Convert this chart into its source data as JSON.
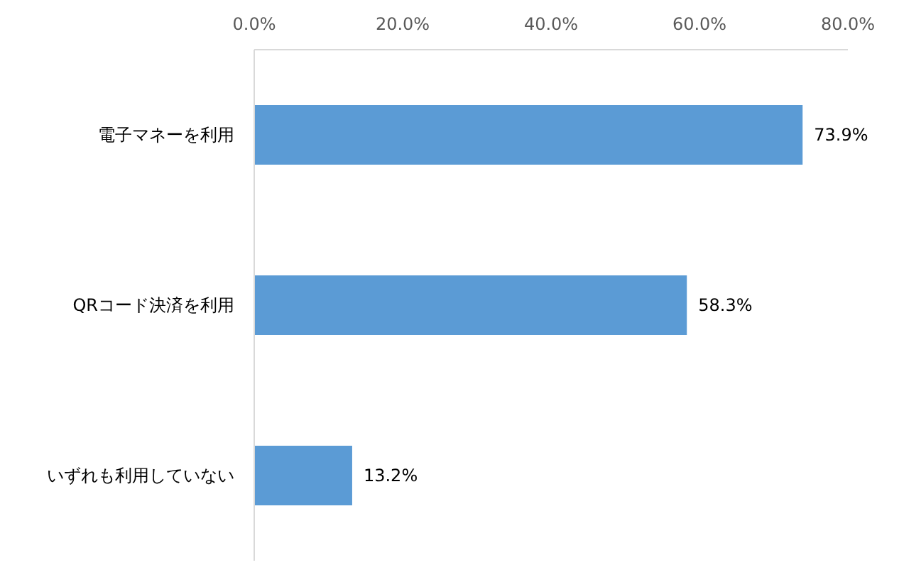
{
  "chart_data": {
    "type": "bar",
    "orientation": "horizontal",
    "categories": [
      "電子マネーを利用",
      "QRコード決済を利用",
      "いずれも利用していない"
    ],
    "values": [
      73.9,
      58.3,
      13.2
    ],
    "value_labels": [
      "73.9%",
      "58.3%",
      "13.2%"
    ],
    "color": "#5b9bd5",
    "xlim": [
      0,
      80
    ],
    "xticks": [
      {
        "value": 0,
        "label": "0.0%"
      },
      {
        "value": 20,
        "label": "20.0%"
      },
      {
        "value": 40,
        "label": "40.0%"
      },
      {
        "value": 60,
        "label": "60.0%"
      },
      {
        "value": 80,
        "label": "80.0%"
      }
    ],
    "grid": false
  }
}
